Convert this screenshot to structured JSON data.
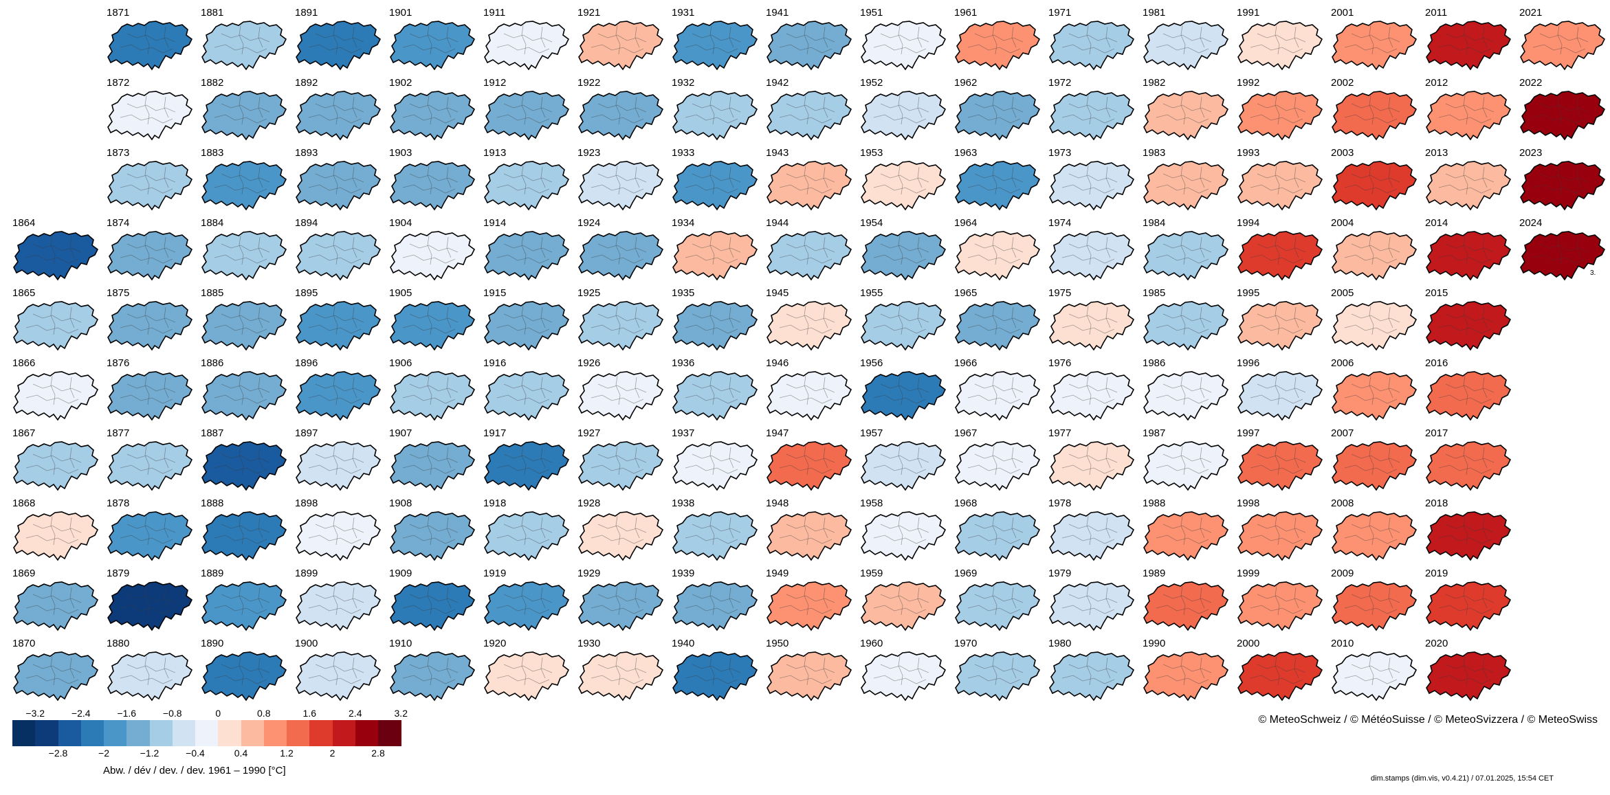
{
  "chart_data": {
    "type": "heatmap",
    "variable_label": "Abw. / dév / dev. / dev. 1961 – 1990 [°C]",
    "colorbar": {
      "bounds": [
        -3.2,
        -2.8,
        -2.4,
        -2.0,
        -1.6,
        -1.2,
        -0.8,
        -0.4,
        0,
        0.4,
        0.8,
        1.2,
        1.6,
        2.0,
        2.4,
        2.8,
        3.2
      ],
      "colors": [
        "#053061",
        "#0d3b7a",
        "#1a5a9e",
        "#2c7bb6",
        "#4a96c8",
        "#74add1",
        "#a6cde6",
        "#d1e2f3",
        "#eef3fb",
        "#fde0d2",
        "#fcbba1",
        "#fc9272",
        "#f26b4e",
        "#de3b2c",
        "#c1191c",
        "#99000d",
        "#6b0010"
      ],
      "ticks_top": [
        "−3.2",
        "−2.4",
        "−1.6",
        "−0.8",
        "0",
        "0.8",
        "1.6",
        "2.4",
        "3.2"
      ],
      "ticks_bottom": [
        "−2.8",
        "−2",
        "−1.2",
        "−0.4",
        "0.4",
        "1.2",
        "2",
        "2.8"
      ]
    },
    "years": [
      1864,
      1865,
      1866,
      1867,
      1868,
      1869,
      1870,
      1871,
      1872,
      1873,
      1874,
      1875,
      1876,
      1877,
      1878,
      1879,
      1880,
      1881,
      1882,
      1883,
      1884,
      1885,
      1886,
      1887,
      1888,
      1889,
      1890,
      1891,
      1892,
      1893,
      1894,
      1895,
      1896,
      1897,
      1898,
      1899,
      1900,
      1901,
      1902,
      1903,
      1904,
      1905,
      1906,
      1907,
      1908,
      1909,
      1910,
      1911,
      1912,
      1913,
      1914,
      1915,
      1916,
      1917,
      1918,
      1919,
      1920,
      1921,
      1922,
      1923,
      1924,
      1925,
      1926,
      1927,
      1928,
      1929,
      1930,
      1931,
      1932,
      1933,
      1934,
      1935,
      1936,
      1937,
      1938,
      1939,
      1940,
      1941,
      1942,
      1943,
      1944,
      1945,
      1946,
      1947,
      1948,
      1949,
      1950,
      1951,
      1952,
      1953,
      1954,
      1955,
      1956,
      1957,
      1958,
      1959,
      1960,
      1961,
      1962,
      1963,
      1964,
      1965,
      1966,
      1967,
      1968,
      1969,
      1970,
      1971,
      1972,
      1973,
      1974,
      1975,
      1976,
      1977,
      1978,
      1979,
      1980,
      1981,
      1982,
      1983,
      1984,
      1985,
      1986,
      1987,
      1988,
      1989,
      1990,
      1991,
      1992,
      1993,
      1994,
      1995,
      1996,
      1997,
      1998,
      1999,
      2000,
      2001,
      2002,
      2003,
      2004,
      2005,
      2006,
      2007,
      2008,
      2009,
      2010,
      2011,
      2012,
      2013,
      2014,
      2015,
      2016,
      2017,
      2018,
      2019,
      2020,
      2021,
      2022,
      2023,
      2024
    ],
    "anomalies": [
      -2.2,
      -0.6,
      0.2,
      -0.8,
      0.4,
      -1.1,
      -1.2,
      -2.0,
      0.1,
      -0.5,
      -0.9,
      -1.0,
      -0.9,
      -0.7,
      -1.4,
      -2.7,
      -0.4,
      -0.7,
      -0.9,
      -1.6,
      -0.6,
      -1.0,
      -0.9,
      -2.1,
      -1.9,
      -1.6,
      -2.0,
      -2.0,
      -1.0,
      -1.1,
      -0.8,
      -1.3,
      -1.6,
      -0.2,
      0.2,
      -0.1,
      -0.3,
      -1.5,
      -1.2,
      -1.1,
      0.1,
      -1.3,
      -0.8,
      -1.0,
      -1.2,
      -1.8,
      -1.0,
      0.3,
      -1.2,
      -0.5,
      -1.0,
      -1.1,
      -0.7,
      -1.8,
      -0.5,
      -1.5,
      0.5,
      0.9,
      -1.2,
      -0.1,
      -1.1,
      -0.8,
      0.3,
      -0.7,
      0.4,
      -1.0,
      0.5,
      -1.4,
      -0.6,
      -1.3,
      0.8,
      -0.9,
      -0.5,
      0.2,
      -0.7,
      -1.0,
      -1.7,
      -1.2,
      -0.6,
      0.8,
      -0.7,
      0.7,
      0.3,
      1.6,
      0.8,
      1.2,
      0.8,
      0.2,
      -0.3,
      0.6,
      -0.9,
      -0.8,
      -1.8,
      -0.2,
      0.3,
      0.9,
      0.2,
      1.3,
      -1.2,
      -1.4,
      0.7,
      -1.2,
      0.2,
      0.3,
      -0.6,
      -0.8,
      -0.8,
      -0.6,
      -0.6,
      -0.3,
      -0.2,
      0.4,
      0.2,
      0.4,
      -0.4,
      -0.1,
      -0.6,
      -0.1,
      1.1,
      0.9,
      -0.5,
      -0.5,
      0.1,
      0.1,
      1.2,
      1.8,
      1.3,
      0.6,
      1.5,
      0.9,
      2.3,
      0.9,
      -0.3,
      1.6,
      1.4,
      1.3,
      2.1,
      1.3,
      1.8,
      2.1,
      1.0,
      0.6,
      1.5,
      1.6,
      1.3,
      1.8,
      0.2,
      2.5,
      1.5,
      1.0,
      2.4,
      2.4,
      1.8,
      1.9,
      2.6,
      2.1,
      2.4,
      1.4,
      3.0,
      2.9,
      2.8
    ]
  },
  "colorbar_label": "Abw. / dév / dev. / dev. 1961 – 1990 [°C]",
  "credit": "© MeteoSchweiz / © MétéoSuisse / © MeteoSvizzera / © MeteoSwiss",
  "footer": "dim.stamps (dim.vis, v0.4.21) / 07.01.2025, 15:54 CET",
  "extra_mark": "3."
}
